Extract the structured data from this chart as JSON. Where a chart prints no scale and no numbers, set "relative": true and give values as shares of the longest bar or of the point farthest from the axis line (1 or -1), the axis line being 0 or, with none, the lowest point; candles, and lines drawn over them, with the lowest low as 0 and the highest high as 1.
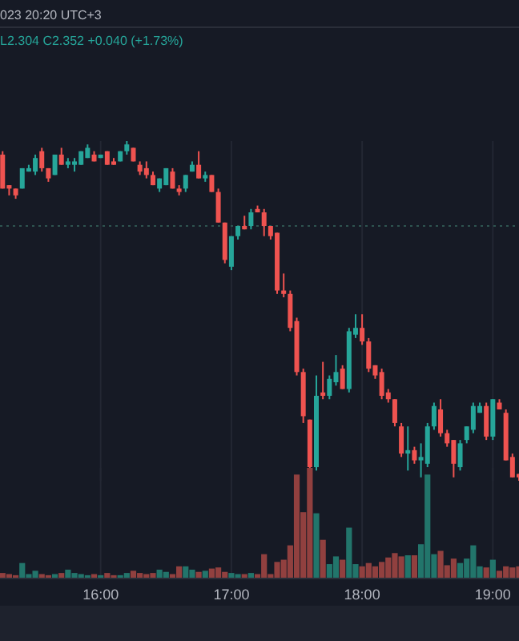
{
  "chart_data": [
    {
      "type": "candlestick",
      "relative": true,
      "grid": "x",
      "tick_labels": false,
      "annotations": [
        "023 20:20 UTC+3",
        "L2.304 C2.352 +0.040 (+1.73%)"
      ],
      "xlim": [
        15.23,
        19.2
      ],
      "xticks": [
        {
          "value": 16,
          "label": null
        },
        {
          "value": 17,
          "label": null
        },
        {
          "value": 18,
          "label": null
        },
        {
          "value": 19,
          "label": null
        }
      ],
      "x": [
        15.25,
        15.3,
        15.35,
        15.4,
        15.45,
        15.5,
        15.55,
        15.6,
        15.65,
        15.7,
        15.75,
        15.8,
        15.85,
        15.9,
        15.95,
        16,
        16.05,
        16.1,
        16.15,
        16.2,
        16.25,
        16.3,
        16.35,
        16.4,
        16.45,
        16.5,
        16.55,
        16.6,
        16.65,
        16.7,
        16.75,
        16.8,
        16.85,
        16.9,
        16.95,
        17,
        17.05,
        17.1,
        17.15,
        17.2,
        17.25,
        17.3,
        17.35,
        17.4,
        17.45,
        17.5,
        17.55,
        17.6,
        17.65,
        17.7,
        17.75,
        17.8,
        17.85,
        17.9,
        17.95,
        18,
        18.05,
        18.1,
        18.15,
        18.2,
        18.25,
        18.3,
        18.35,
        18.4,
        18.45,
        18.5,
        18.55,
        18.6,
        18.65,
        18.7,
        18.75,
        18.8,
        18.85,
        18.9,
        18.95,
        19,
        19.05,
        19.1,
        19.15,
        19.2
      ],
      "ref_lines": [
        {
          "axis": "y",
          "value": 0.75,
          "color": "#2e5450",
          "line_style": "dotted"
        }
      ],
      "series": [
        {
          "ohlc": [
            [
              0.96,
              0.97,
              0.86,
              0.86
            ],
            [
              0.87,
              0.87,
              0.84,
              0.86
            ],
            [
              0.86,
              0.86,
              0.83,
              0.84
            ],
            [
              0.86,
              0.92,
              0.86,
              0.92
            ],
            [
              0.91,
              0.93,
              0.91,
              0.92
            ],
            [
              0.91,
              0.96,
              0.9,
              0.95
            ],
            [
              0.97,
              0.98,
              0.91,
              0.92
            ],
            [
              0.92,
              0.92,
              0.88,
              0.89
            ],
            [
              0.9,
              0.96,
              0.9,
              0.96
            ],
            [
              0.96,
              0.98,
              0.93,
              0.93
            ],
            [
              0.93,
              0.95,
              0.92,
              0.94
            ],
            [
              0.93,
              0.95,
              0.91,
              0.94
            ],
            [
              0.93,
              0.97,
              0.93,
              0.97
            ],
            [
              0.95,
              0.99,
              0.95,
              0.98
            ],
            [
              0.96,
              0.97,
              0.94,
              0.94
            ],
            [
              0.95,
              0.96,
              0.95,
              0.96
            ],
            [
              0.97,
              0.97,
              0.93,
              0.93
            ],
            [
              0.94,
              0.95,
              0.93,
              0.93
            ],
            [
              0.94,
              0.97,
              0.94,
              0.97
            ],
            [
              0.97,
              1,
              0.96,
              0.99
            ],
            [
              0.98,
              0.98,
              0.94,
              0.94
            ],
            [
              0.93,
              0.94,
              0.9,
              0.91
            ],
            [
              0.92,
              0.94,
              0.89,
              0.9
            ],
            [
              0.9,
              0.91,
              0.87,
              0.87
            ],
            [
              0.86,
              0.89,
              0.85,
              0.89
            ],
            [
              0.87,
              0.92,
              0.87,
              0.92
            ],
            [
              0.91,
              0.92,
              0.86,
              0.86
            ],
            [
              0.86,
              0.87,
              0.84,
              0.85
            ],
            [
              0.86,
              0.9,
              0.85,
              0.9
            ],
            [
              0.91,
              0.94,
              0.91,
              0.93
            ],
            [
              0.93,
              0.97,
              0.89,
              0.89
            ],
            [
              0.89,
              0.91,
              0.88,
              0.9
            ],
            [
              0.9,
              0.9,
              0.85,
              0.85
            ],
            [
              0.85,
              0.86,
              0.76,
              0.76
            ],
            [
              0.76,
              0.76,
              0.64,
              0.65
            ],
            [
              0.63,
              0.72,
              0.62,
              0.72
            ],
            [
              0.72,
              0.75,
              0.71,
              0.75
            ],
            [
              0.75,
              0.78,
              0.74,
              0.74
            ],
            [
              0.75,
              0.8,
              0.74,
              0.79
            ],
            [
              0.8,
              0.81,
              0.79,
              0.79
            ],
            [
              0.79,
              0.8,
              0.72,
              0.75
            ],
            [
              0.75,
              0.75,
              0.71,
              0.72
            ],
            [
              0.73,
              0.73,
              0.55,
              0.56
            ],
            [
              0.56,
              0.61,
              0.54,
              0.55
            ],
            [
              0.55,
              0.56,
              0.44,
              0.45
            ],
            [
              0.47,
              0.48,
              0.31,
              0.32
            ],
            [
              0.32,
              0.33,
              0.17,
              0.19
            ],
            [
              0.18,
              0.18,
              0.03,
              0.04
            ],
            [
              0.04,
              0.31,
              0.03,
              0.25
            ],
            [
              0.26,
              0.35,
              0.24,
              0.25
            ],
            [
              0.25,
              0.31,
              0.24,
              0.3
            ],
            [
              0.29,
              0.37,
              0.28,
              0.32
            ],
            [
              0.33,
              0.34,
              0.27,
              0.27
            ],
            [
              0.27,
              0.45,
              0.26,
              0.44
            ],
            [
              0.43,
              0.49,
              0.42,
              0.45
            ],
            [
              0.45,
              0.49,
              0.4,
              0.41
            ],
            [
              0.41,
              0.42,
              0.32,
              0.33
            ],
            [
              0.34,
              0.34,
              0.3,
              0.31
            ],
            [
              0.32,
              0.33,
              0.24,
              0.25
            ],
            [
              0.26,
              0.27,
              0.23,
              0.24
            ],
            [
              0.24,
              0.24,
              0.16,
              0.17
            ],
            [
              0.16,
              0.17,
              0.07,
              0.08
            ],
            [
              0.08,
              0.16,
              0.03,
              0.09
            ],
            [
              0.09,
              0.1,
              0.05,
              0.06
            ],
            [
              0.06,
              0.11,
              0.01,
              0.07
            ],
            [
              0.05,
              0.17,
              0.04,
              0.16
            ],
            [
              0.16,
              0.23,
              0.15,
              0.22
            ],
            [
              0.21,
              0.24,
              0.13,
              0.14
            ],
            [
              0.14,
              0.15,
              0.1,
              0.11
            ],
            [
              0.12,
              0.12,
              0.01,
              0.05
            ],
            [
              0.04,
              0.12,
              0.03,
              0.11
            ],
            [
              0.12,
              0.16,
              0.11,
              0.16
            ],
            [
              0.15,
              0.23,
              0.14,
              0.22
            ],
            [
              0.2,
              0.23,
              0.2,
              0.22
            ],
            [
              0.22,
              0.23,
              0.12,
              0.13
            ],
            [
              0.13,
              0.24,
              0.12,
              0.24
            ],
            [
              0.23,
              0.24,
              0.21,
              0.21
            ],
            [
              0.2,
              0.21,
              0.06,
              0.06
            ],
            [
              0.07,
              0.08,
              0.01,
              0.01
            ],
            [
              0.02,
              0.02,
              0,
              0.01
            ]
          ],
          "colors": [
            "#ef5350",
            "#ef5350",
            "#ef5350",
            "#26a69a",
            "#26a69a",
            "#26a69a",
            "#ef5350",
            "#ef5350",
            "#26a69a",
            "#ef5350",
            "#26a69a",
            "#26a69a",
            "#26a69a",
            "#26a69a",
            "#ef5350",
            "#26a69a",
            "#ef5350",
            "#ef5350",
            "#26a69a",
            "#26a69a",
            "#ef5350",
            "#ef5350",
            "#ef5350",
            "#ef5350",
            "#26a69a",
            "#26a69a",
            "#ef5350",
            "#ef5350",
            "#26a69a",
            "#26a69a",
            "#ef5350",
            "#26a69a",
            "#ef5350",
            "#ef5350",
            "#ef5350",
            "#26a69a",
            "#26a69a",
            "#ef5350",
            "#26a69a",
            "#ef5350",
            "#ef5350",
            "#ef5350",
            "#ef5350",
            "#ef5350",
            "#ef5350",
            "#ef5350",
            "#ef5350",
            "#ef5350",
            "#26a69a",
            "#ef5350",
            "#26a69a",
            "#26a69a",
            "#ef5350",
            "#26a69a",
            "#26a69a",
            "#ef5350",
            "#ef5350",
            "#ef5350",
            "#ef5350",
            "#ef5350",
            "#ef5350",
            "#ef5350",
            "#26a69a",
            "#ef5350",
            "#26a69a",
            "#26a69a",
            "#26a69a",
            "#ef5350",
            "#ef5350",
            "#ef5350",
            "#26a69a",
            "#26a69a",
            "#26a69a",
            "#26a69a",
            "#ef5350",
            "#26a69a",
            "#ef5350",
            "#ef5350",
            "#ef5350",
            "#ef5350"
          ]
        }
      ]
    },
    {
      "type": "bar",
      "relative": true,
      "grid": "x",
      "xlim": [
        15.23,
        19.2
      ],
      "xticks": [
        {
          "value": 16,
          "label": "16:00"
        },
        {
          "value": 17,
          "label": "17:00"
        },
        {
          "value": 18,
          "label": "18:00"
        },
        {
          "value": 19,
          "label": "19:00"
        }
      ],
      "x": [
        15.25,
        15.3,
        15.35,
        15.4,
        15.45,
        15.5,
        15.55,
        15.6,
        15.65,
        15.7,
        15.75,
        15.8,
        15.85,
        15.9,
        15.95,
        16,
        16.05,
        16.1,
        16.15,
        16.2,
        16.25,
        16.3,
        16.35,
        16.4,
        16.45,
        16.5,
        16.55,
        16.6,
        16.65,
        16.7,
        16.75,
        16.8,
        16.85,
        16.9,
        16.95,
        17,
        17.05,
        17.1,
        17.15,
        17.2,
        17.25,
        17.3,
        17.35,
        17.4,
        17.45,
        17.5,
        17.55,
        17.6,
        17.65,
        17.7,
        17.75,
        17.8,
        17.85,
        17.9,
        17.95,
        18,
        18.05,
        18.1,
        18.15,
        18.2,
        18.25,
        18.3,
        18.35,
        18.4,
        18.45,
        18.5,
        18.55,
        18.6,
        18.65,
        18.7,
        18.75,
        18.8,
        18.85,
        18.9,
        18.95,
        19,
        19.05,
        19.1,
        19.15,
        19.2
      ],
      "series": [
        {
          "values": [
            0.05,
            0.04,
            0.03,
            0.14,
            0.04,
            0.07,
            0.04,
            0.03,
            0.04,
            0.05,
            0.08,
            0.05,
            0.04,
            0.03,
            0.04,
            0.03,
            0.05,
            0.03,
            0.03,
            0.05,
            0.07,
            0.05,
            0.04,
            0.05,
            0.08,
            0.06,
            0.04,
            0.11,
            0.11,
            0.08,
            0.06,
            0.07,
            0.09,
            0.1,
            0.06,
            0.05,
            0.04,
            0.04,
            0.05,
            0.04,
            0.22,
            0.04,
            0.15,
            0.17,
            0.3,
            0.94,
            0.6,
            1,
            0.59,
            0.35,
            0.13,
            0.2,
            0.17,
            0.46,
            0.13,
            0.11,
            0.14,
            0.11,
            0.15,
            0.19,
            0.23,
            0.2,
            0.21,
            0.21,
            0.31,
            0.94,
            0.22,
            0.25,
            0.12,
            0.18,
            0.14,
            0.18,
            0.3,
            0.11,
            0.1,
            0.17,
            0.07,
            0.11,
            0.1,
            0.11
          ],
          "colors": [
            "#91403f",
            "#91403f",
            "#91403f",
            "#22756b",
            "#22756b",
            "#22756b",
            "#91403f",
            "#91403f",
            "#22756b",
            "#91403f",
            "#22756b",
            "#22756b",
            "#22756b",
            "#22756b",
            "#91403f",
            "#22756b",
            "#91403f",
            "#91403f",
            "#22756b",
            "#22756b",
            "#91403f",
            "#91403f",
            "#91403f",
            "#91403f",
            "#22756b",
            "#22756b",
            "#91403f",
            "#91403f",
            "#22756b",
            "#22756b",
            "#91403f",
            "#22756b",
            "#91403f",
            "#91403f",
            "#91403f",
            "#22756b",
            "#22756b",
            "#91403f",
            "#22756b",
            "#91403f",
            "#91403f",
            "#91403f",
            "#91403f",
            "#91403f",
            "#91403f",
            "#91403f",
            "#91403f",
            "#91403f",
            "#22756b",
            "#91403f",
            "#22756b",
            "#22756b",
            "#91403f",
            "#22756b",
            "#22756b",
            "#91403f",
            "#91403f",
            "#91403f",
            "#91403f",
            "#91403f",
            "#91403f",
            "#91403f",
            "#22756b",
            "#91403f",
            "#22756b",
            "#22756b",
            "#22756b",
            "#91403f",
            "#91403f",
            "#91403f",
            "#22756b",
            "#22756b",
            "#22756b",
            "#22756b",
            "#91403f",
            "#22756b",
            "#91403f",
            "#91403f",
            "#91403f",
            "#91403f"
          ]
        }
      ]
    }
  ]
}
